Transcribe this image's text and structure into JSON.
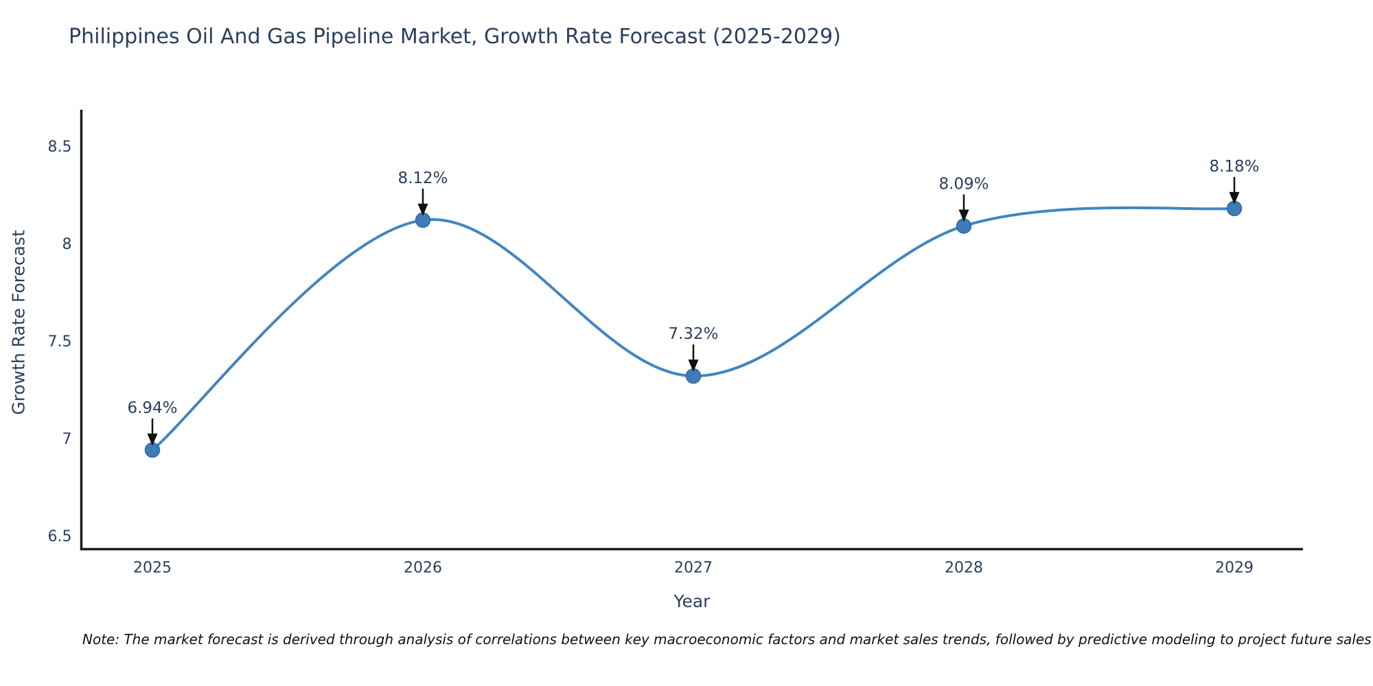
{
  "title": "Philippines Oil And Gas Pipeline Market, Growth Rate Forecast (2025-2029)",
  "note": "Note: The market forecast is derived through analysis of correlations between key macroeconomic factors and market sales trends, followed by predictive modeling to project future sales",
  "colors": {
    "line": "#4186c0",
    "marker": "#3d7cb8",
    "marker_stroke": "#2f6ba3",
    "axis": "#1a1a1a",
    "arrow": "#111111",
    "text": "#2a3f5f",
    "note_text": "#111111",
    "background": "#ffffff"
  },
  "chart_data": {
    "type": "line",
    "title": "Philippines Oil And Gas Pipeline Market, Growth Rate Forecast (2025-2029)",
    "xlabel": "Year",
    "ylabel": "Growth Rate Forecast",
    "x": [
      2025,
      2026,
      2027,
      2028,
      2029
    ],
    "values": [
      6.94,
      8.12,
      7.32,
      8.09,
      8.18
    ],
    "point_labels": [
      "6.94%",
      "8.12%",
      "7.32%",
      "8.09%",
      "8.18%"
    ],
    "yticks": [
      8.5,
      8,
      7.5,
      7,
      6.5
    ],
    "ylim": [
      6.43,
      8.68
    ],
    "line_shape": "spline",
    "grid": false,
    "legend": "none",
    "annotation_style": "black downward arrow from each label to its data point"
  }
}
